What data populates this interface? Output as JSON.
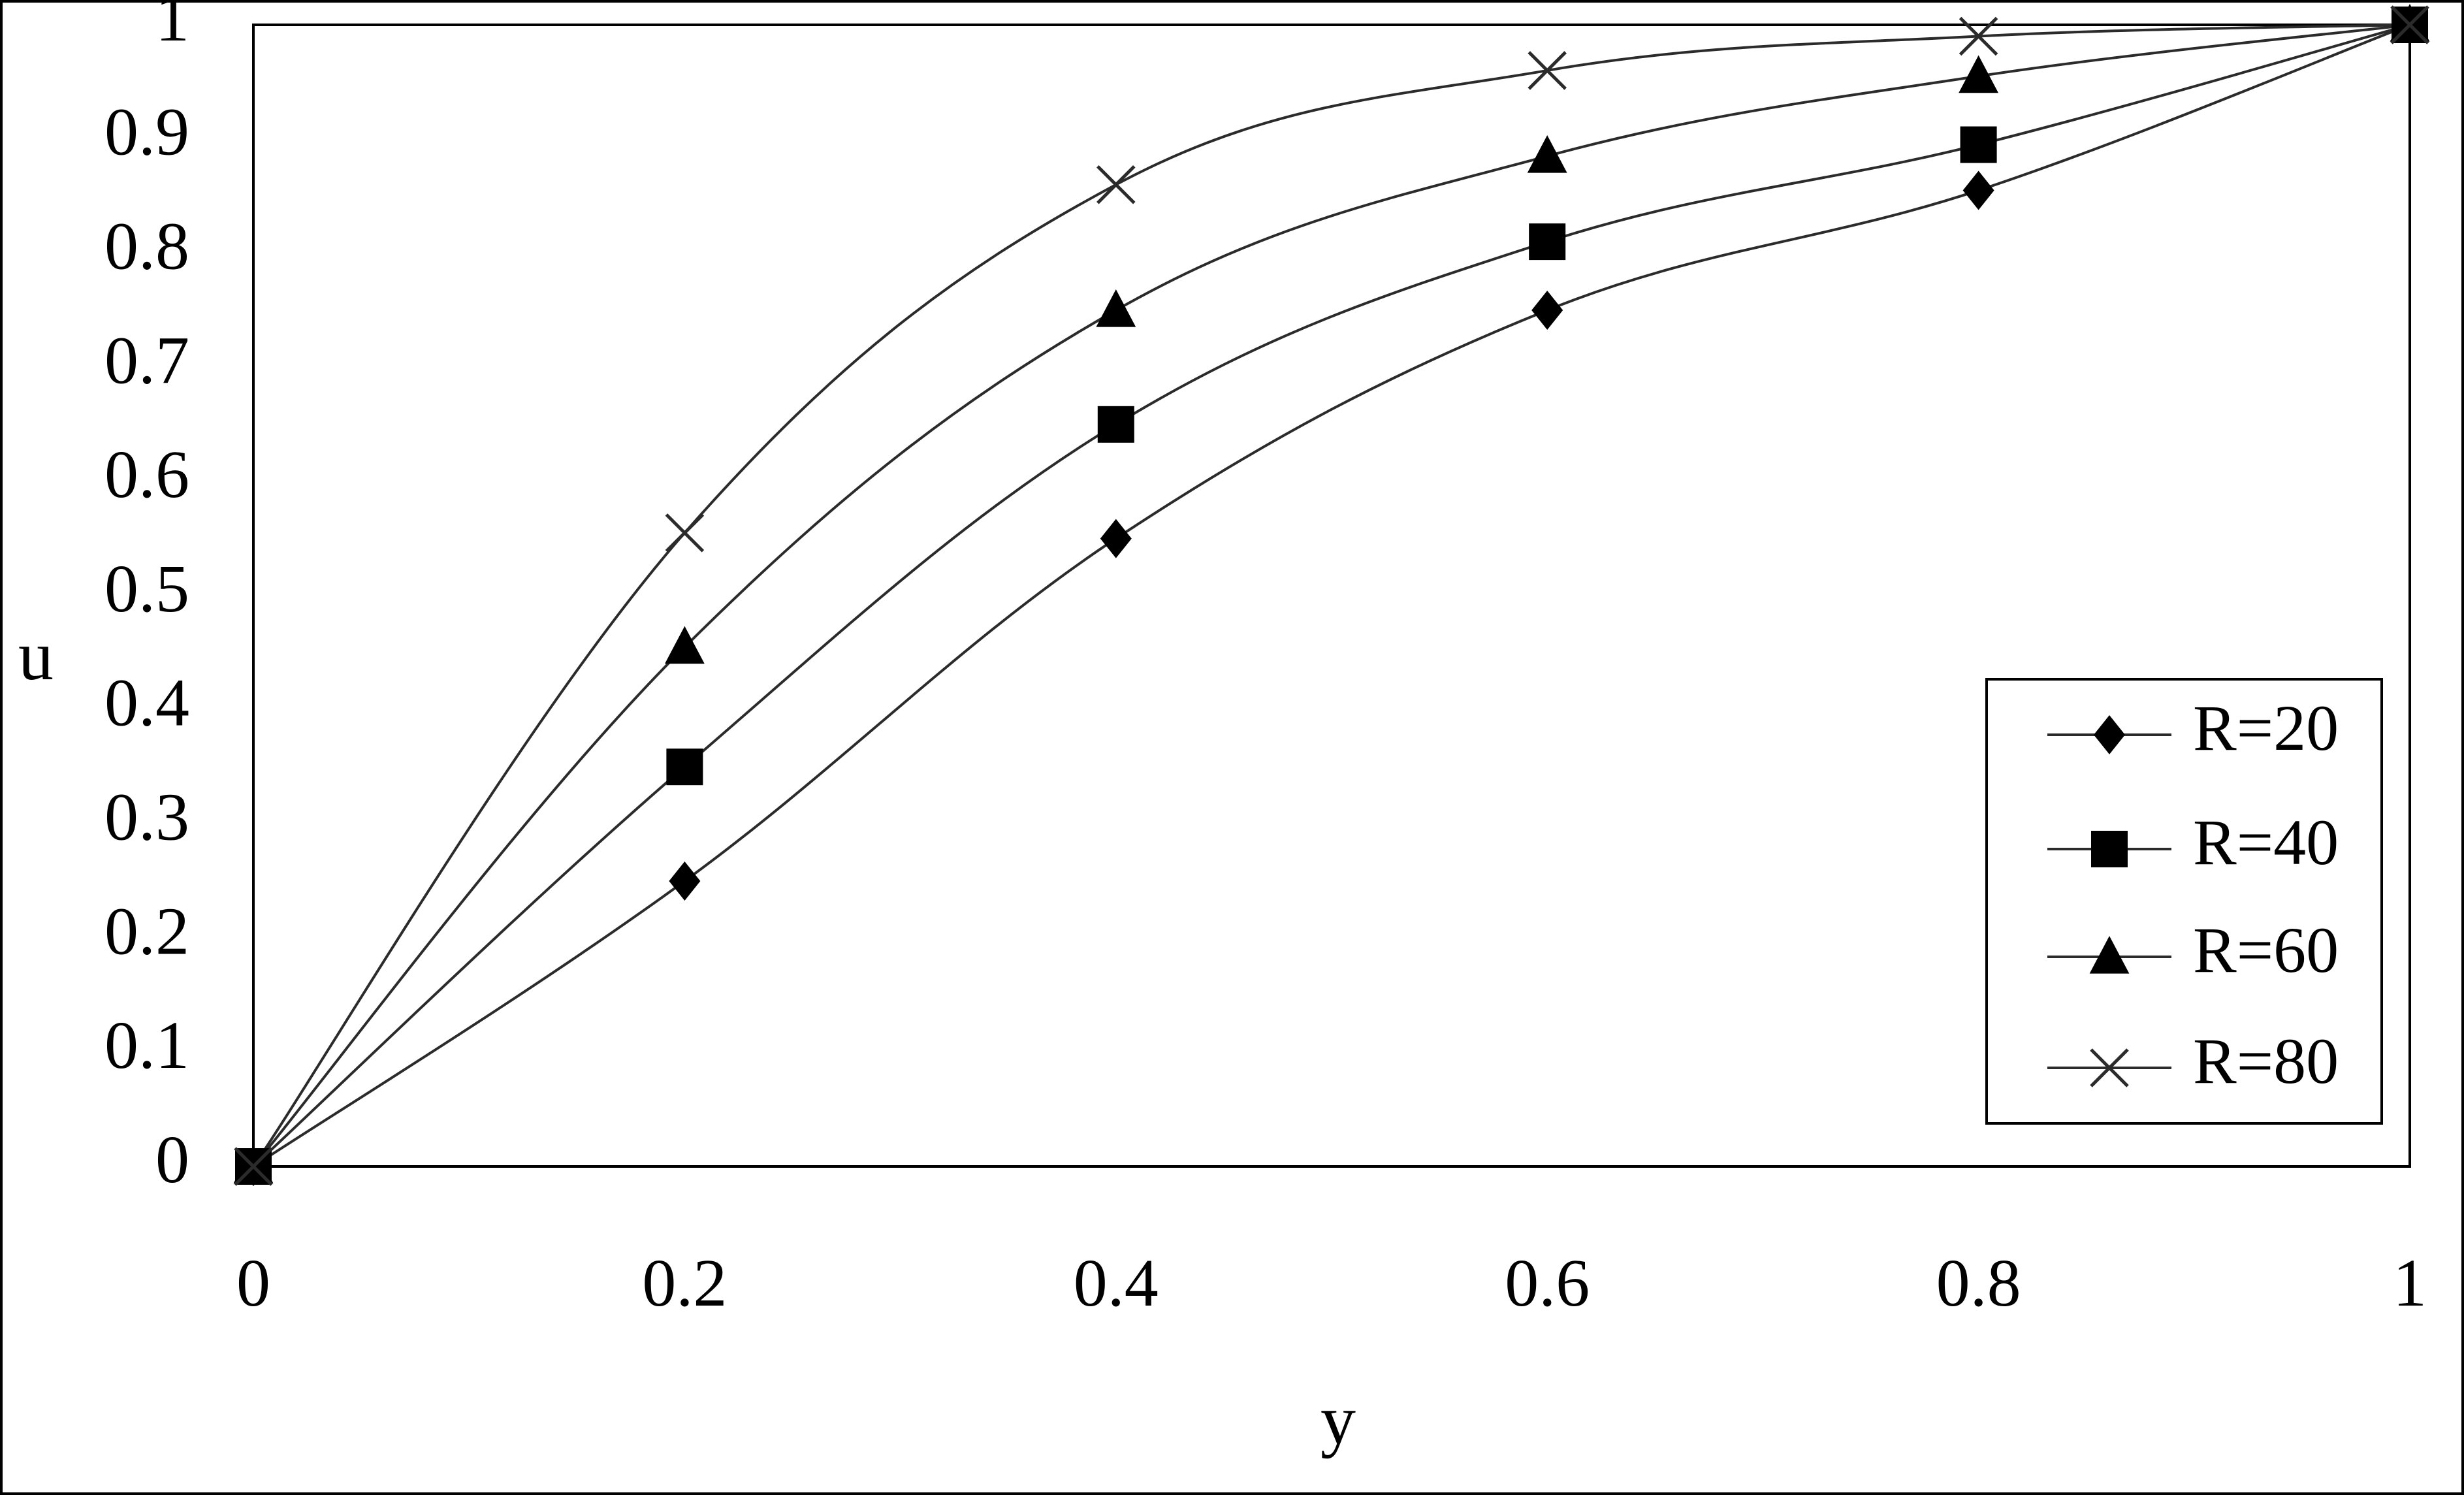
{
  "chart_data": {
    "type": "line",
    "title": "",
    "xlabel": "y",
    "ylabel": "u",
    "x": [
      0,
      0.2,
      0.4,
      0.6,
      0.8,
      1
    ],
    "xlim": [
      0,
      1
    ],
    "ylim": [
      0,
      1
    ],
    "x_ticks": [
      "0",
      "0.2",
      "0.4",
      "0.6",
      "0.8",
      "1"
    ],
    "y_ticks": [
      "0",
      "0.1",
      "0.2",
      "0.3",
      "0.4",
      "0.5",
      "0.6",
      "0.7",
      "0.8",
      "0.9",
      "1"
    ],
    "grid": false,
    "legend_position": "right",
    "series": [
      {
        "name": "R=20",
        "marker": "diamond",
        "values": [
          0,
          0.25,
          0.55,
          0.75,
          0.855,
          1
        ]
      },
      {
        "name": "R=40",
        "marker": "square",
        "values": [
          0,
          0.35,
          0.65,
          0.81,
          0.895,
          1
        ]
      },
      {
        "name": "R=60",
        "marker": "triangle",
        "values": [
          0,
          0.455,
          0.75,
          0.885,
          0.955,
          1
        ]
      },
      {
        "name": "R=80",
        "marker": "x",
        "values": [
          0,
          0.555,
          0.86,
          0.96,
          0.99,
          1
        ]
      }
    ],
    "colors": {
      "line": "#2b2b2b",
      "marker": "#000000",
      "frame": "#000000",
      "background": "#ffffff"
    }
  }
}
